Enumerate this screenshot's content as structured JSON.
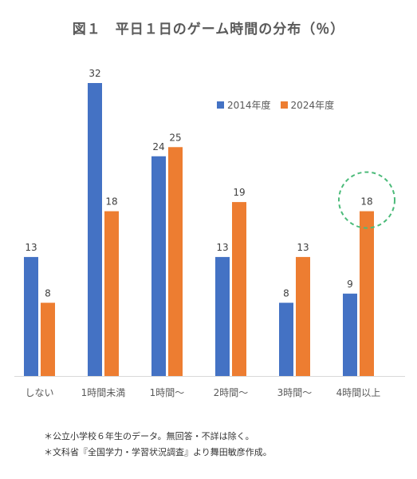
{
  "chart_data": {
    "type": "bar",
    "title": "図１　平日１日のゲーム時間の分布（％）",
    "categories": [
      "しない",
      "1時間未満",
      "1時間〜",
      "2時間〜",
      "3時間〜",
      "4時間以上"
    ],
    "series": [
      {
        "name": "2014年度",
        "color": "#4472C4",
        "values": [
          13,
          32,
          24,
          13,
          8,
          9
        ]
      },
      {
        "name": "2024年度",
        "color": "#ED7D31",
        "values": [
          8,
          18,
          25,
          19,
          13,
          18
        ]
      }
    ],
    "ylim": [
      0,
      32
    ],
    "grid": false,
    "legend_position": "top-right",
    "highlight": {
      "category": "4時間以上",
      "series": "2024年度",
      "style": "dashed-circle",
      "color": "#4CBB7A"
    }
  },
  "notes": [
    "＊公立小学校６年生のデータ。無回答・不詳は除く。",
    "＊文科省『全国学力・学習状況調査』より舞田敏彦作成。"
  ]
}
